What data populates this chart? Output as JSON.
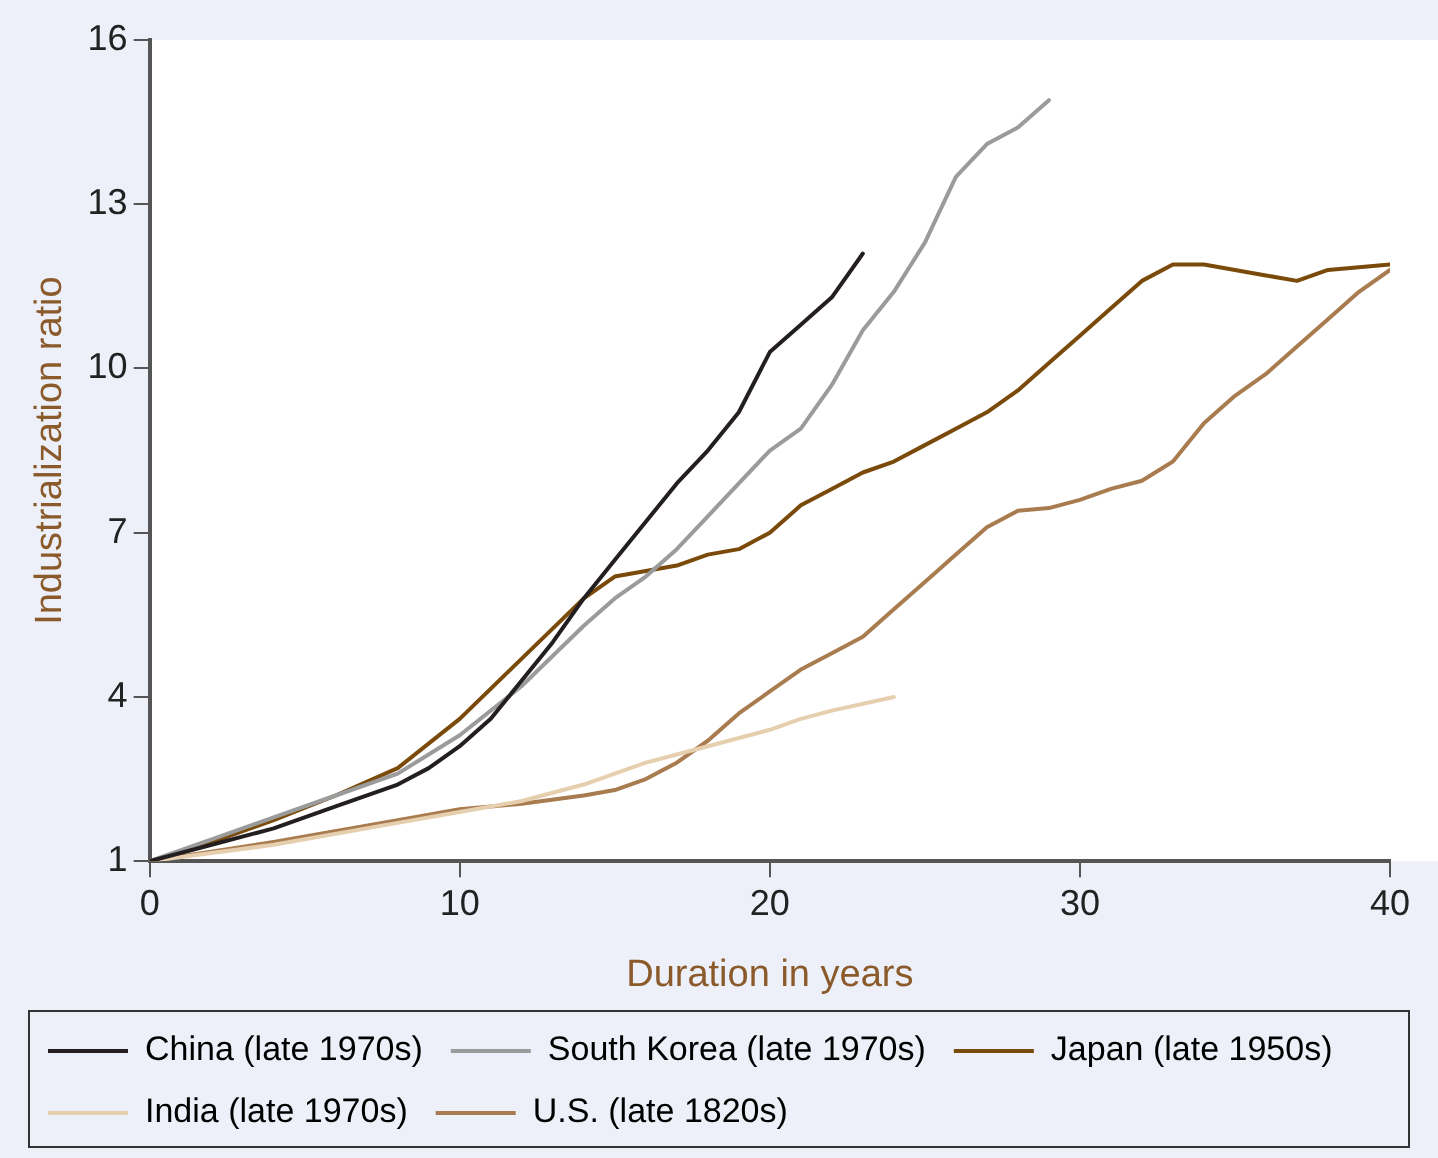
{
  "chart_data": {
    "type": "line",
    "xlabel": "Duration in years",
    "ylabel": "Industrialization ratio",
    "xlim": [
      0,
      40
    ],
    "xticks": [
      0,
      10,
      20,
      30,
      40
    ],
    "ylim": [
      1,
      16
    ],
    "yticks": [
      1,
      4,
      7,
      10,
      13,
      16
    ],
    "grid": false,
    "legend": "bottom",
    "marker": "none",
    "line_style": "solid",
    "series": [
      {
        "name": "China (late 1970s)",
        "color": "#231f20",
        "x": [
          0,
          2,
          4,
          6,
          8,
          9,
          10,
          11,
          12,
          13,
          14,
          15,
          16,
          17,
          18,
          19,
          20,
          21,
          22,
          23
        ],
        "values": [
          1,
          1.3,
          1.6,
          2.0,
          2.4,
          2.7,
          3.1,
          3.6,
          4.3,
          5.0,
          5.8,
          6.5,
          7.2,
          7.9,
          8.5,
          9.2,
          10.3,
          10.8,
          11.3,
          12.1
        ]
      },
      {
        "name": "South Korea (late 1970s)",
        "color": "#9b9b9b",
        "x": [
          0,
          2,
          4,
          6,
          8,
          10,
          12,
          14,
          15,
          16,
          17,
          18,
          19,
          20,
          21,
          22,
          23,
          24,
          25,
          26,
          27,
          28,
          29
        ],
        "values": [
          1,
          1.4,
          1.8,
          2.2,
          2.6,
          3.3,
          4.2,
          5.3,
          5.8,
          6.2,
          6.7,
          7.3,
          7.9,
          8.5,
          8.9,
          9.7,
          10.7,
          11.4,
          12.3,
          13.5,
          14.1,
          14.4,
          14.9
        ]
      },
      {
        "name": "Japan (late 1950s)",
        "color": "#7a4a0a",
        "x": [
          0,
          2,
          4,
          6,
          8,
          10,
          12,
          14,
          15,
          16,
          17,
          18,
          19,
          20,
          21,
          22,
          23,
          24,
          25,
          26,
          27,
          28,
          29,
          30,
          31,
          32,
          33,
          34,
          35,
          36,
          37,
          38,
          39,
          40
        ],
        "values": [
          1,
          1.35,
          1.75,
          2.2,
          2.7,
          3.6,
          4.7,
          5.8,
          6.2,
          6.3,
          6.4,
          6.6,
          6.7,
          7.0,
          7.5,
          7.8,
          8.1,
          8.3,
          8.6,
          8.9,
          9.2,
          9.6,
          10.1,
          10.6,
          11.1,
          11.6,
          11.9,
          11.9,
          11.8,
          11.7,
          11.6,
          11.8,
          11.85,
          11.9
        ]
      },
      {
        "name": "India (late 1970s)",
        "color": "#e6cfae",
        "x": [
          0,
          4,
          8,
          10,
          12,
          14,
          16,
          18,
          20,
          21,
          22,
          24
        ],
        "values": [
          1,
          1.3,
          1.7,
          1.9,
          2.1,
          2.4,
          2.8,
          3.1,
          3.4,
          3.6,
          3.75,
          4.0
        ]
      },
      {
        "name": "U.S. (late 1820s)",
        "color": "#a97c50",
        "x": [
          0,
          4,
          8,
          10,
          12,
          14,
          15,
          16,
          17,
          18,
          19,
          20,
          21,
          22,
          23,
          24,
          25,
          26,
          27,
          28,
          29,
          30,
          31,
          32,
          33,
          34,
          35,
          36,
          37,
          38,
          39,
          40
        ],
        "values": [
          1,
          1.35,
          1.75,
          1.95,
          2.05,
          2.2,
          2.3,
          2.5,
          2.8,
          3.2,
          3.7,
          4.1,
          4.5,
          4.8,
          5.1,
          5.6,
          6.1,
          6.6,
          7.1,
          7.4,
          7.45,
          7.6,
          7.8,
          7.95,
          8.3,
          9.0,
          9.5,
          9.9,
          10.4,
          10.9,
          11.4,
          11.8
        ]
      }
    ]
  }
}
